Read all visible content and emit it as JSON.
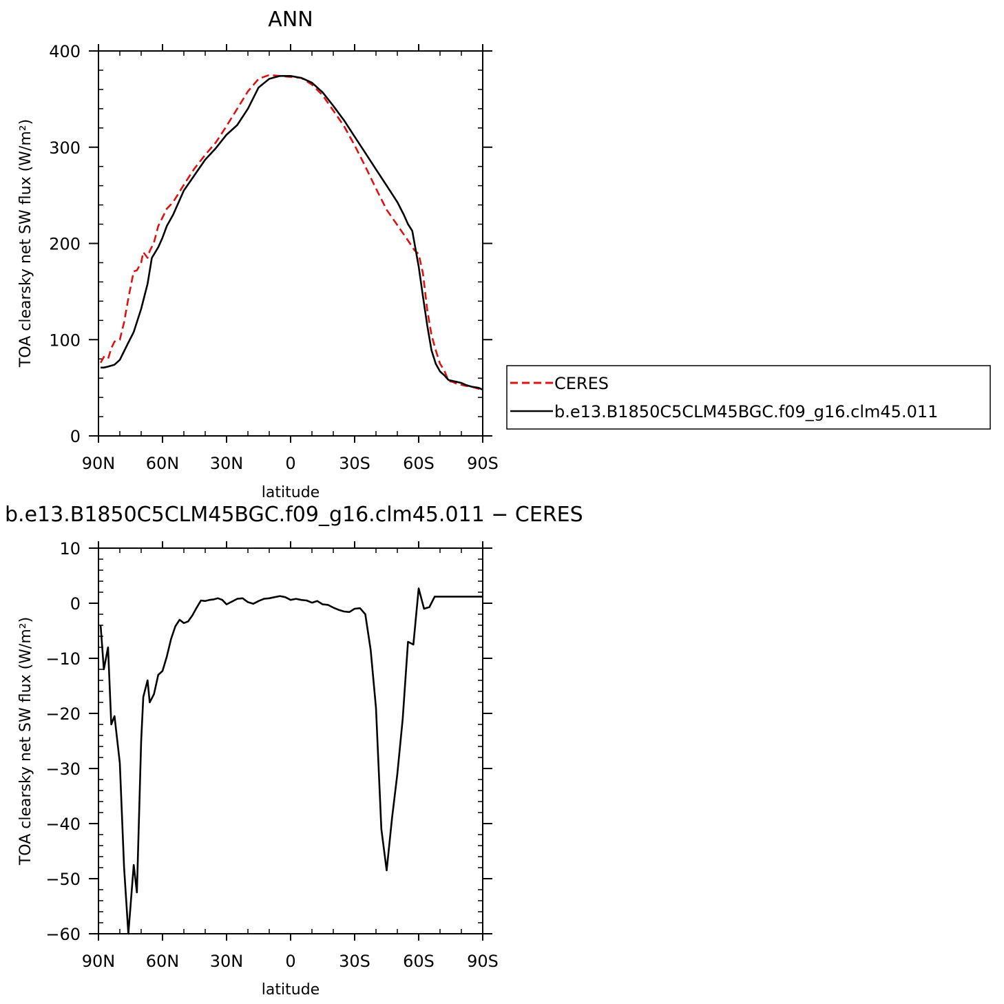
{
  "chart_data": [
    {
      "type": "line",
      "title": "ANN",
      "xlabel": "latitude",
      "ylabel": "TOA clearsky net SW flux (W/m²)",
      "xlim": [
        90,
        -90
      ],
      "ylim": [
        0,
        400
      ],
      "x_ticks": [
        90,
        60,
        30,
        0,
        -30,
        -60,
        -90
      ],
      "x_tick_labels": [
        "90N",
        "60N",
        "30N",
        "0",
        "30S",
        "60S",
        "90S"
      ],
      "y_ticks": [
        0,
        100,
        200,
        300,
        400
      ],
      "y_tick_labels": [
        "0",
        "100",
        "200",
        "300",
        "400"
      ],
      "legend": {
        "placement": "right"
      },
      "series": [
        {
          "name": "CERES",
          "color": "#e01010",
          "dash": "dashed",
          "x": [
            89,
            87.5,
            85.5,
            84,
            82.5,
            80,
            78,
            76,
            73.5,
            72,
            70,
            69,
            67,
            66,
            64,
            62,
            60,
            58,
            55,
            50,
            45,
            40,
            35,
            30,
            25,
            20,
            15,
            10,
            5,
            0,
            -5,
            -10,
            -15,
            -20,
            -25,
            -30,
            -35,
            -40,
            -45,
            -50,
            -55,
            -58,
            -60,
            -62,
            -64,
            -66,
            -68,
            -70,
            -72,
            -74,
            -76,
            -78,
            -80,
            -82,
            -85,
            -88,
            -90
          ],
          "y": [
            76,
            82,
            80,
            91,
            98,
            100,
            118,
            143,
            171,
            172,
            180,
            191,
            185,
            192,
            201,
            218,
            227,
            236,
            243,
            261,
            278,
            292,
            305,
            322,
            340,
            358,
            371,
            375,
            374,
            373,
            372,
            365,
            354,
            338,
            322,
            302,
            280,
            257,
            235,
            219,
            203,
            193,
            189,
            169,
            131,
            105,
            89,
            75,
            68,
            57,
            56,
            54,
            53,
            52,
            51,
            49,
            48
          ]
        },
        {
          "name": "b.e13.B1850C5CLM45BGC.f09_g16.clm45.011",
          "color": "#000000",
          "dash": "solid",
          "x": [
            89,
            87.5,
            85.5,
            84,
            82.5,
            80,
            78,
            76,
            73.5,
            70,
            67,
            65,
            62,
            60,
            58,
            55,
            50,
            45,
            40,
            35,
            30,
            25,
            20,
            15,
            10,
            5,
            0,
            -5,
            -10,
            -15,
            -20,
            -25,
            -30,
            -35,
            -40,
            -45,
            -50,
            -53,
            -55,
            -57,
            -60,
            -62,
            -64,
            -66,
            -68,
            -70,
            -72,
            -74,
            -76,
            -78,
            -80,
            -82,
            -85,
            -88,
            -90
          ],
          "y": [
            71,
            71,
            72,
            73,
            74,
            79,
            88,
            97,
            108,
            132,
            158,
            185,
            196,
            206,
            218,
            230,
            255,
            271,
            287,
            299,
            313,
            323,
            340,
            362,
            371,
            374,
            374,
            372,
            367,
            357,
            343,
            328,
            311,
            294,
            277,
            260,
            243,
            230,
            220,
            213,
            176,
            145,
            115,
            89,
            75,
            67,
            63,
            58,
            57,
            56,
            55,
            53,
            51,
            50,
            48
          ]
        }
      ]
    },
    {
      "type": "line",
      "title": "b.e13.B1850C5CLM45BGC.f09_g16.clm45.011 − CERES",
      "xlabel": "latitude",
      "ylabel": "TOA clearsky net SW flux (W/m²)",
      "xlim": [
        90,
        -90
      ],
      "ylim": [
        -60,
        10
      ],
      "x_ticks": [
        90,
        60,
        30,
        0,
        -30,
        -60,
        -90
      ],
      "x_tick_labels": [
        "90N",
        "60N",
        "30N",
        "0",
        "30S",
        "60S",
        "90S"
      ],
      "y_ticks": [
        10,
        0,
        -10,
        -20,
        -30,
        -40,
        -50,
        -60
      ],
      "y_tick_labels": [
        "10",
        "0",
        "−10",
        "−20",
        "−30",
        "−40",
        "−50",
        "−60"
      ],
      "series": [
        {
          "color": "#000000",
          "dash": "solid",
          "x": [
            89,
            87.5,
            85.5,
            84,
            82.5,
            80,
            78,
            76,
            73.5,
            72,
            70,
            69,
            67,
            66,
            64,
            62,
            60,
            58,
            56,
            54,
            52,
            50,
            48,
            46,
            44,
            42,
            40,
            38,
            36,
            34,
            32,
            30,
            27.5,
            25,
            22.5,
            20,
            17.5,
            15,
            12.5,
            10,
            7.5,
            5,
            2.5,
            0,
            -2.5,
            -5,
            -7.5,
            -10,
            -12.5,
            -15,
            -17.5,
            -20,
            -22.5,
            -25,
            -27.5,
            -30,
            -32.5,
            -35,
            -37.5,
            -40,
            -42.5,
            -45,
            -47.5,
            -50,
            -52.5,
            -55,
            -57.5,
            -60,
            -62.5,
            -65,
            -67.5,
            -70,
            -72.5,
            -75,
            -77.5,
            -80,
            -82.5,
            -85,
            -87.5,
            -90
          ],
          "y": [
            -4,
            -12,
            -8,
            -22,
            -20.5,
            -29,
            -48,
            -60,
            -47.5,
            -52.5,
            -25,
            -17,
            -14,
            -18,
            -16.5,
            -13,
            -12.3,
            -9.7,
            -6.5,
            -4.2,
            -3,
            -3.6,
            -3.3,
            -2.2,
            -0.8,
            0.5,
            0.4,
            0.6,
            0.7,
            0.9,
            0.6,
            -0.2,
            0.3,
            0.8,
            0.9,
            0.2,
            -0.1,
            0.4,
            0.8,
            0.9,
            1.1,
            1.3,
            1.1,
            0.6,
            0.8,
            0.6,
            0.5,
            0.1,
            0.4,
            -0.2,
            -0.3,
            -0.8,
            -1.2,
            -1.5,
            -1.6,
            -1.0,
            -0.9,
            -2.0,
            -8.5,
            -19,
            -41,
            -48.5,
            -39,
            -31,
            -21,
            -7,
            -7.5,
            2.7,
            -1,
            -0.7,
            1.2,
            1.2,
            1.2,
            1.2,
            1.2,
            1.2,
            1.2,
            1.2,
            1.2,
            1.2
          ]
        }
      ]
    }
  ]
}
